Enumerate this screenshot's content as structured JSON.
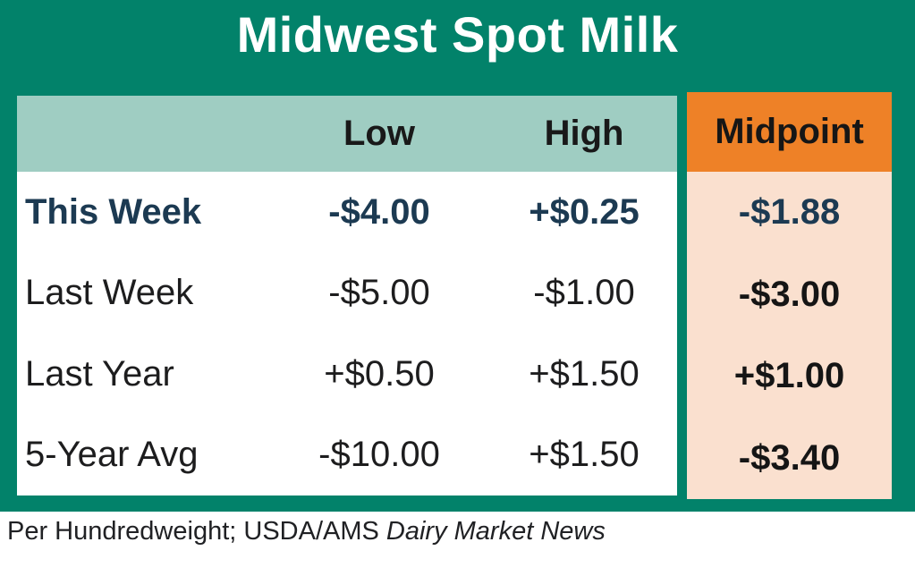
{
  "title": "Midwest Spot Milk",
  "colors": {
    "banner_green": "#02826a",
    "header_seafoam": "#9fcdc2",
    "midpoint_orange": "#ee8127",
    "midpoint_peach": "#fae0cf",
    "this_week_navy": "#1c3a52",
    "title_white": "#ffffff"
  },
  "table": {
    "columns": [
      "",
      "Low",
      "High",
      "Midpoint"
    ],
    "rows": [
      {
        "label": "This Week",
        "low": "-$4.00",
        "high": "+$0.25",
        "midpoint": "-$1.88"
      },
      {
        "label": "Last Week",
        "low": "-$5.00",
        "high": "-$1.00",
        "midpoint": "-$3.00"
      },
      {
        "label": "Last Year",
        "low": "+$0.50",
        "high": "+$1.50",
        "midpoint": "+$1.00"
      },
      {
        "label": "5-Year Avg",
        "low": "-$10.00",
        "high": "+$1.50",
        "midpoint": "-$3.40"
      }
    ]
  },
  "footnote": {
    "plain": "Per Hundredweight; USDA/AMS ",
    "italic": "Dairy Market News"
  },
  "chart_data": {
    "type": "table",
    "title": "Midwest Spot Milk",
    "columns": [
      "",
      "Low",
      "High",
      "Midpoint"
    ],
    "rows": [
      [
        "This Week",
        "-$4.00",
        "+$0.25",
        "-$1.88"
      ],
      [
        "Last Week",
        "-$5.00",
        "-$1.00",
        "-$3.00"
      ],
      [
        "Last Year",
        "+$0.50",
        "+$1.50",
        "+$1.00"
      ],
      [
        "5-Year Avg",
        "-$10.00",
        "+$1.50",
        "-$3.40"
      ]
    ],
    "numeric": {
      "low": [
        -4.0,
        -5.0,
        0.5,
        -10.0
      ],
      "high": [
        0.25,
        -1.0,
        1.5,
        1.5
      ],
      "midpoint": [
        -1.88,
        -3.0,
        1.0,
        -3.4
      ]
    },
    "units": "USD per hundredweight",
    "note": "Per Hundredweight; USDA/AMS Dairy Market News"
  }
}
